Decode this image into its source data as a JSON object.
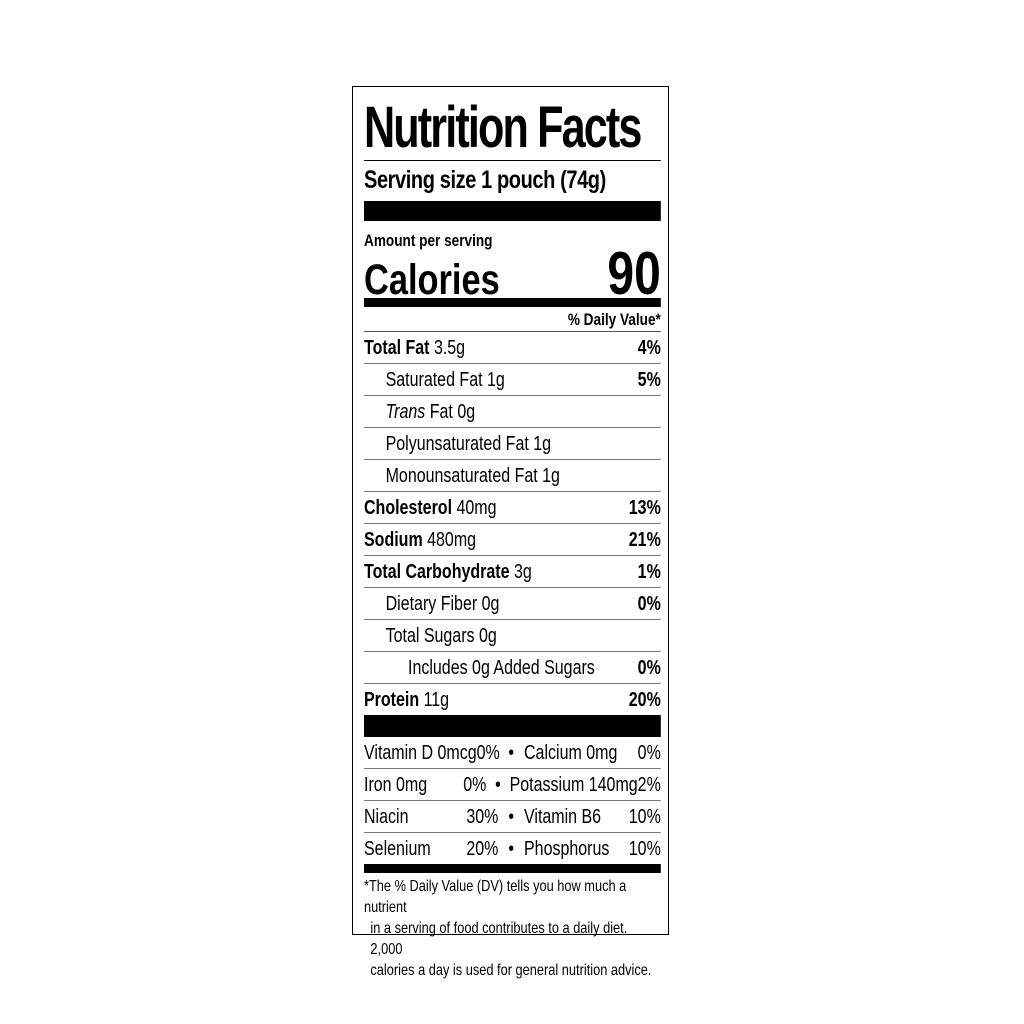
{
  "title": "Nutrition Facts",
  "serving_size": "Serving size 1 pouch (74g)",
  "amount_per_serving": "Amount per serving",
  "calories_label": "Calories",
  "calories_value": "90",
  "daily_value_header": "% Daily Value*",
  "nutrients": [
    {
      "name": "Total Fat",
      "amount": "3.5g",
      "dv": "4%"
    },
    {
      "name": "Saturated Fat",
      "amount": "1g",
      "dv": "5%"
    },
    {
      "name": "Trans",
      "amount": "Fat 0g",
      "dv": ""
    },
    {
      "name": "Polyunsaturated Fat",
      "amount": "1g",
      "dv": ""
    },
    {
      "name": "Monounsaturated Fat",
      "amount": "1g",
      "dv": ""
    },
    {
      "name": "Cholesterol",
      "amount": "40mg",
      "dv": "13%"
    },
    {
      "name": "Sodium",
      "amount": "480mg",
      "dv": "21%"
    },
    {
      "name": "Total Carbohydrate",
      "amount": "3g",
      "dv": "1%"
    },
    {
      "name": "Dietary Fiber",
      "amount": "0g",
      "dv": "0%"
    },
    {
      "name": "Total Sugars",
      "amount": "0g",
      "dv": ""
    },
    {
      "name": "Includes 0g Added Sugars",
      "amount": "",
      "dv": "0%"
    },
    {
      "name": "Protein",
      "amount": "11g",
      "dv": "20%"
    }
  ],
  "vitamins": [
    {
      "left": "Vitamin D 0mcg",
      "left_dv": "0%",
      "right": "Calcium 0mg",
      "right_dv": "0%"
    },
    {
      "left": "Iron 0mg",
      "left_dv": "0%",
      "right": "Potassium 140mg",
      "right_dv": "2%"
    },
    {
      "left": "Niacin",
      "left_dv": "30%",
      "right": "Vitamin B6",
      "right_dv": "10%"
    },
    {
      "left": "Selenium",
      "left_dv": "20%",
      "right": "Phosphorus",
      "right_dv": "10%"
    }
  ],
  "separator": "•",
  "footnote": [
    "*The % Daily Value (DV) tells you how much a nutrient",
    "in a serving of food contributes to a daily diet. 2,000",
    "calories a day is used for general nutrition advice."
  ]
}
